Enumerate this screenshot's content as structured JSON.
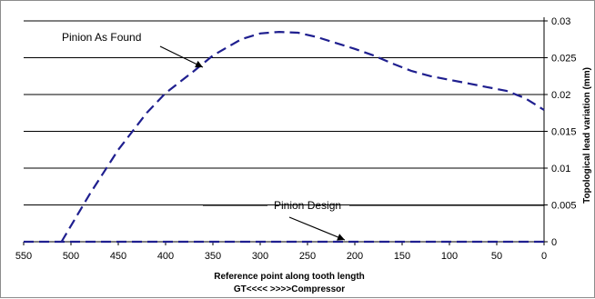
{
  "chart_data": {
    "type": "line",
    "xlabel": "Reference point along tooth length",
    "xlabel_line2": "GT<<<<  >>>>Compressor",
    "ylabel": "Topological lead variation (mm)",
    "x_reversed": true,
    "xlim": [
      550,
      0
    ],
    "ylim": [
      0,
      0.03
    ],
    "y_axis_position": "right",
    "grid": "horizontal",
    "x_ticks": [
      "550",
      "500",
      "450",
      "400",
      "350",
      "300",
      "250",
      "200",
      "150",
      "100",
      "50",
      "0"
    ],
    "y_ticks": [
      "0",
      "0.005",
      "0.01",
      "0.015",
      "0.02",
      "0.025",
      "0.03"
    ],
    "series": [
      {
        "name": "Pinion As Found",
        "color": "#1f1f8f",
        "style": "dashed",
        "x": [
          510,
          480,
          450,
          420,
          400,
          370,
          350,
          320,
          300,
          280,
          260,
          240,
          220,
          200,
          180,
          160,
          140,
          120,
          100,
          80,
          60,
          40,
          20,
          0
        ],
        "y": [
          0.0,
          0.0065,
          0.0125,
          0.0175,
          0.0202,
          0.0232,
          0.0253,
          0.0275,
          0.0283,
          0.0285,
          0.0284,
          0.0278,
          0.027,
          0.0262,
          0.0253,
          0.0242,
          0.0232,
          0.0225,
          0.022,
          0.0215,
          0.021,
          0.0205,
          0.0195,
          0.0179
        ]
      },
      {
        "name": "Pinion Design",
        "color": "#1f1f8f",
        "style": "dashed",
        "x": [
          550,
          500,
          450,
          400,
          350,
          300,
          250,
          200,
          150,
          100,
          50,
          0
        ],
        "y": [
          0,
          0,
          0,
          0,
          0,
          0,
          0,
          0,
          0,
          0,
          0,
          0
        ]
      }
    ],
    "annotations": [
      {
        "text": "Pinion As Found",
        "target_series": "Pinion As Found",
        "arrow": true
      },
      {
        "text": "Pinion Design",
        "target_series": "Pinion Design",
        "arrow": true
      }
    ]
  }
}
